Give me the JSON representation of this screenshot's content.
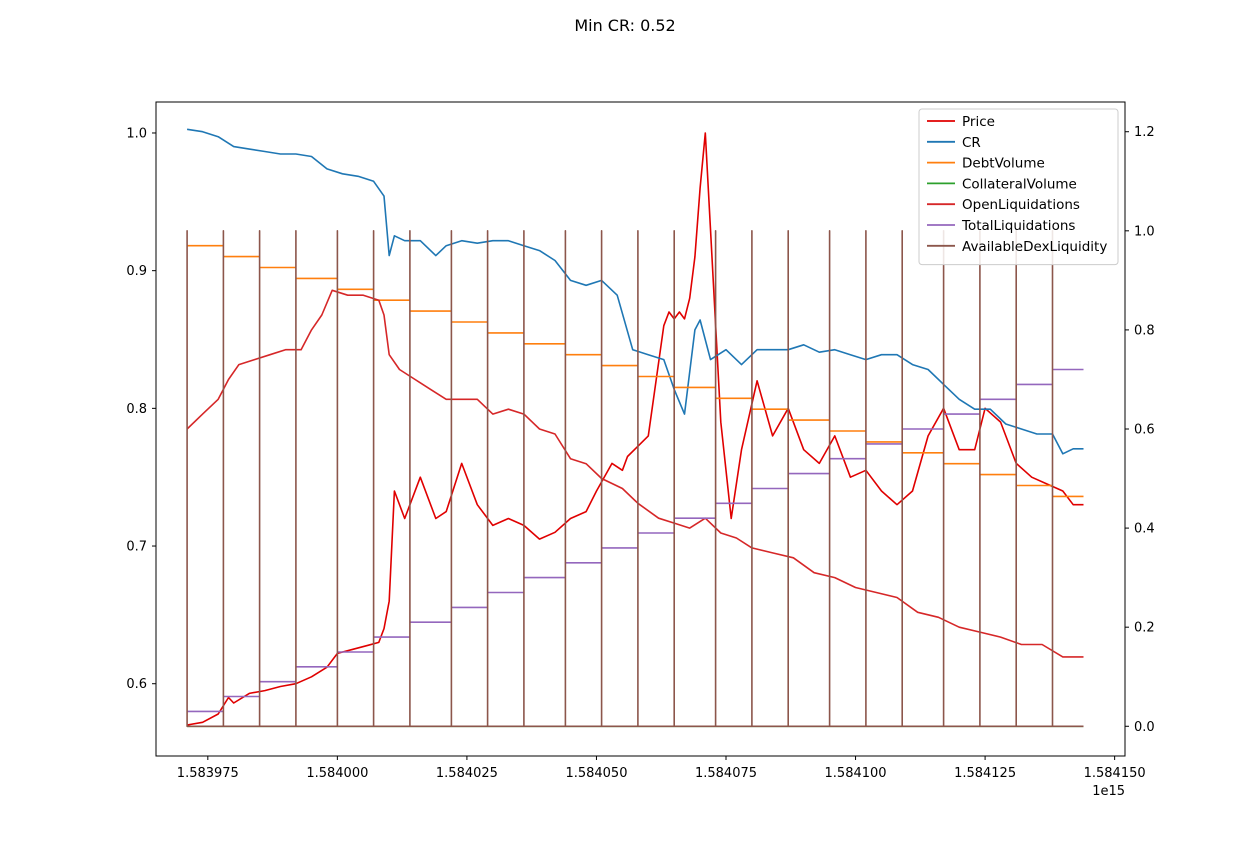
{
  "chart_data": {
    "type": "line",
    "title": "Min CR: 0.52",
    "x_multiplier_label": "1e15",
    "x_range": [
      1.583965,
      1.584152
    ],
    "x_ticks": [
      1.583975,
      1.584,
      1.584025,
      1.58405,
      1.584075,
      1.5841,
      1.584125,
      1.58415
    ],
    "x_tick_labels": [
      "1.583975",
      "1.584000",
      "1.584025",
      "1.584050",
      "1.584075",
      "1.584100",
      "1.584125",
      "1.584150"
    ],
    "y_left": {
      "range": [
        0.5475,
        1.0225
      ],
      "ticks": [
        0.6,
        0.7,
        0.8,
        0.9,
        1.0
      ],
      "tick_labels": [
        "0.6",
        "0.7",
        "0.8",
        "0.9",
        "1.0"
      ]
    },
    "y_right": {
      "range": [
        -0.06,
        1.26
      ],
      "ticks": [
        0.0,
        0.2,
        0.4,
        0.6,
        0.8,
        1.0,
        1.2
      ],
      "tick_labels": [
        "0.0",
        "0.2",
        "0.4",
        "0.6",
        "0.8",
        "1.0",
        "1.2"
      ]
    },
    "grid": false,
    "legend_position": "top-right",
    "series": [
      {
        "name": "Price",
        "color": "#e00000",
        "axis": "left",
        "x": [
          1.583971,
          1.583974,
          1.583977,
          1.583979,
          1.58398,
          1.583983,
          1.583986,
          1.583989,
          1.583992,
          1.583995,
          1.583998,
          1.584,
          1.584003,
          1.584006,
          1.584008,
          1.584009,
          1.58401,
          1.584011,
          1.584013,
          1.584016,
          1.584019,
          1.584021,
          1.584024,
          1.584027,
          1.58403,
          1.584033,
          1.584036,
          1.584039,
          1.584042,
          1.584045,
          1.584048,
          1.58405,
          1.584053,
          1.584055,
          1.584056,
          1.58406,
          1.584063,
          1.584064,
          1.584065,
          1.584066,
          1.584067,
          1.584068,
          1.584069,
          1.58407,
          1.584071,
          1.584072,
          1.584074,
          1.584076,
          1.584078,
          1.584081,
          1.584084,
          1.584087,
          1.58409,
          1.584093,
          1.584096,
          1.584099,
          1.584102,
          1.584105,
          1.584108,
          1.584111,
          1.584114,
          1.584117,
          1.58412,
          1.584123,
          1.584125,
          1.584128,
          1.584131,
          1.584134,
          1.584137,
          1.58414,
          1.584142,
          1.584144
        ],
        "y": [
          0.57,
          0.572,
          0.578,
          0.59,
          0.586,
          0.593,
          0.595,
          0.598,
          0.6,
          0.605,
          0.612,
          0.622,
          0.625,
          0.628,
          0.63,
          0.64,
          0.66,
          0.74,
          0.72,
          0.75,
          0.72,
          0.725,
          0.76,
          0.73,
          0.715,
          0.72,
          0.715,
          0.705,
          0.71,
          0.72,
          0.725,
          0.74,
          0.76,
          0.755,
          0.765,
          0.78,
          0.86,
          0.87,
          0.865,
          0.87,
          0.865,
          0.88,
          0.91,
          0.96,
          1.0,
          0.93,
          0.79,
          0.72,
          0.77,
          0.82,
          0.78,
          0.8,
          0.77,
          0.76,
          0.78,
          0.75,
          0.755,
          0.74,
          0.73,
          0.74,
          0.78,
          0.8,
          0.77,
          0.77,
          0.8,
          0.79,
          0.76,
          0.75,
          0.745,
          0.74,
          0.73,
          0.73
        ]
      },
      {
        "name": "CR",
        "color": "#1f77b4",
        "axis": "right",
        "x": [
          1.583971,
          1.583974,
          1.583977,
          1.58398,
          1.583983,
          1.583986,
          1.583989,
          1.583992,
          1.583995,
          1.583998,
          1.584001,
          1.584004,
          1.584007,
          1.584009,
          1.58401,
          1.584011,
          1.584013,
          1.584016,
          1.584019,
          1.584021,
          1.584024,
          1.584027,
          1.58403,
          1.584033,
          1.584036,
          1.584039,
          1.584042,
          1.584045,
          1.584048,
          1.584051,
          1.584054,
          1.584057,
          1.58406,
          1.584063,
          1.584065,
          1.584067,
          1.584069,
          1.58407,
          1.584072,
          1.584075,
          1.584078,
          1.584081,
          1.584084,
          1.584087,
          1.58409,
          1.584093,
          1.584096,
          1.584099,
          1.584102,
          1.584105,
          1.584108,
          1.584111,
          1.584114,
          1.584117,
          1.58412,
          1.584123,
          1.584126,
          1.584129,
          1.584132,
          1.584135,
          1.584138,
          1.58414,
          1.584142,
          1.584144
        ],
        "y": [
          1.205,
          1.2,
          1.19,
          1.17,
          1.165,
          1.16,
          1.155,
          1.155,
          1.15,
          1.125,
          1.115,
          1.11,
          1.1,
          1.07,
          0.95,
          0.99,
          0.98,
          0.98,
          0.95,
          0.97,
          0.98,
          0.975,
          0.98,
          0.98,
          0.97,
          0.96,
          0.94,
          0.9,
          0.89,
          0.9,
          0.87,
          0.76,
          0.75,
          0.74,
          0.68,
          0.63,
          0.8,
          0.82,
          0.74,
          0.76,
          0.73,
          0.76,
          0.76,
          0.76,
          0.77,
          0.755,
          0.76,
          0.75,
          0.74,
          0.75,
          0.75,
          0.73,
          0.72,
          0.69,
          0.66,
          0.64,
          0.64,
          0.61,
          0.6,
          0.59,
          0.59,
          0.55,
          0.56,
          0.56
        ]
      },
      {
        "name": "DebtVolume",
        "color": "#ff7f0e",
        "axis": "right",
        "steps": [
          [
            1.583971,
            0.97
          ],
          [
            1.583978,
            0.948
          ],
          [
            1.583985,
            0.926
          ],
          [
            1.583992,
            0.904
          ],
          [
            1.584,
            0.882
          ],
          [
            1.584007,
            0.86
          ],
          [
            1.584014,
            0.838
          ],
          [
            1.584022,
            0.816
          ],
          [
            1.584029,
            0.794
          ],
          [
            1.584036,
            0.772
          ],
          [
            1.584044,
            0.75
          ],
          [
            1.584051,
            0.728
          ],
          [
            1.584058,
            0.706
          ],
          [
            1.584065,
            0.684
          ],
          [
            1.584073,
            0.662
          ],
          [
            1.58408,
            0.64
          ],
          [
            1.584087,
            0.618
          ],
          [
            1.584095,
            0.596
          ],
          [
            1.584102,
            0.574
          ],
          [
            1.584109,
            0.552
          ],
          [
            1.584117,
            0.53
          ],
          [
            1.584124,
            0.508
          ],
          [
            1.584131,
            0.486
          ],
          [
            1.584138,
            0.464
          ],
          [
            1.584144,
            0.442
          ]
        ],
        "step_end": 1.584144
      },
      {
        "name": "CollateralVolume",
        "color": "#2ca02c",
        "axis": "right",
        "x": [
          1.583971,
          1.584144
        ],
        "y": [
          0.0,
          0.0
        ]
      },
      {
        "name": "OpenLiquidations",
        "color": "#d62728",
        "axis": "right",
        "x": [
          1.583971,
          1.583974,
          1.583977,
          1.583979,
          1.583981,
          1.583984,
          1.583987,
          1.58399,
          1.583993,
          1.583995,
          1.583997,
          1.583999,
          1.584002,
          1.584005,
          1.584008,
          1.584009,
          1.58401,
          1.584012,
          1.584015,
          1.584018,
          1.584021,
          1.584024,
          1.584027,
          1.58403,
          1.584033,
          1.584036,
          1.584039,
          1.584042,
          1.584045,
          1.584048,
          1.584051,
          1.584053,
          1.584055,
          1.584058,
          1.584062,
          1.584065,
          1.584068,
          1.584071,
          1.584074,
          1.584077,
          1.58408,
          1.584084,
          1.584088,
          1.584092,
          1.584096,
          1.5841,
          1.584104,
          1.584108,
          1.584112,
          1.584116,
          1.58412,
          1.584124,
          1.584128,
          1.584132,
          1.584136,
          1.58414,
          1.584144
        ],
        "y": [
          0.6,
          0.63,
          0.66,
          0.7,
          0.73,
          0.74,
          0.75,
          0.76,
          0.76,
          0.8,
          0.83,
          0.88,
          0.87,
          0.87,
          0.86,
          0.83,
          0.75,
          0.72,
          0.7,
          0.68,
          0.66,
          0.66,
          0.66,
          0.63,
          0.64,
          0.63,
          0.6,
          0.59,
          0.54,
          0.53,
          0.5,
          0.49,
          0.48,
          0.45,
          0.42,
          0.41,
          0.4,
          0.42,
          0.39,
          0.38,
          0.36,
          0.35,
          0.34,
          0.31,
          0.3,
          0.28,
          0.27,
          0.26,
          0.23,
          0.22,
          0.2,
          0.19,
          0.18,
          0.165,
          0.165,
          0.14,
          0.14
        ]
      },
      {
        "name": "TotalLiquidations",
        "color": "#9467bd",
        "axis": "right",
        "steps": [
          [
            1.583971,
            0.03
          ],
          [
            1.583978,
            0.06
          ],
          [
            1.583985,
            0.09
          ],
          [
            1.583992,
            0.12
          ],
          [
            1.584,
            0.15
          ],
          [
            1.584007,
            0.18
          ],
          [
            1.584014,
            0.21
          ],
          [
            1.584022,
            0.24
          ],
          [
            1.584029,
            0.27
          ],
          [
            1.584036,
            0.3
          ],
          [
            1.584044,
            0.33
          ],
          [
            1.584051,
            0.36
          ],
          [
            1.584058,
            0.39
          ],
          [
            1.584065,
            0.42
          ],
          [
            1.584073,
            0.45
          ],
          [
            1.58408,
            0.48
          ],
          [
            1.584087,
            0.51
          ],
          [
            1.584095,
            0.54
          ],
          [
            1.584102,
            0.57
          ],
          [
            1.584109,
            0.6
          ],
          [
            1.584117,
            0.63
          ],
          [
            1.584124,
            0.66
          ],
          [
            1.584131,
            0.69
          ],
          [
            1.584138,
            0.72
          ]
        ],
        "step_end": 1.584144
      },
      {
        "name": "AvailableDexLiquidity",
        "color": "#8c564b",
        "axis": "right",
        "spikes": [
          1.583971,
          1.583978,
          1.583985,
          1.583992,
          1.584,
          1.584007,
          1.584014,
          1.584022,
          1.584029,
          1.584036,
          1.584044,
          1.584051,
          1.584058,
          1.584065,
          1.584073,
          1.58408,
          1.584087,
          1.584095,
          1.584102,
          1.584109,
          1.584117,
          1.584124,
          1.584131,
          1.584138
        ],
        "spike_value": 1.0,
        "base_value": 0.0,
        "x_end": 1.584144
      }
    ]
  }
}
